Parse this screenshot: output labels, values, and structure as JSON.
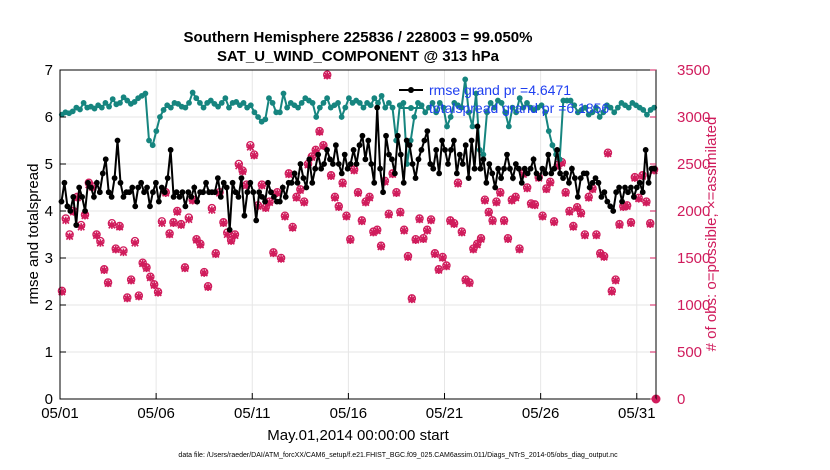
{
  "colors": {
    "rmse": "#000000",
    "spread": "#16857f",
    "obs": "#d01c5c",
    "legend_text": "#1f3ff0",
    "grid": "#e6e6e6"
  },
  "chart_data": {
    "type": "line",
    "title": [
      "Southern Hemisphere 225836 / 228003 = 99.050%",
      "SAT_U_WIND_COMPONENT @ 313 hPa"
    ],
    "xlabel": "May.01,2014 00:00:00 start",
    "ylabel": "rmse and totalspread",
    "ylabel_right": "# of obs: o=possible; ×=assimilated",
    "xlim": [
      1,
      32
    ],
    "ylim": [
      0,
      7
    ],
    "ylim_right": [
      0,
      3500
    ],
    "x_ticks": [
      1,
      6,
      11,
      16,
      21,
      26,
      31
    ],
    "x_tick_labels": [
      "05/01",
      "05/06",
      "05/11",
      "05/16",
      "05/21",
      "05/26",
      "05/31"
    ],
    "y_ticks": [
      0,
      1,
      2,
      3,
      4,
      5,
      6,
      7
    ],
    "y_ticks_right": [
      0,
      500,
      1000,
      1500,
      2000,
      2500,
      3000,
      3500
    ],
    "legend": [
      "rmse grand pr =4.6471",
      "totalspread grand pr =6.1856"
    ],
    "legend_position": "top-right",
    "series": [
      {
        "name": "rmse",
        "axis": "left",
        "marker": "dot",
        "values": [
          4.2,
          4.6,
          4.1,
          4.0,
          4.3,
          3.7,
          4.5,
          4.3,
          4.0,
          4.6,
          4.5,
          4.3,
          4.6,
          4.4,
          4.8,
          5.1,
          4.4,
          4.3,
          4.7,
          5.5,
          4.6,
          4.3,
          4.4,
          4.4,
          4.5,
          4.1,
          4.5,
          4.6,
          4.4,
          4.5,
          4.1,
          4.4,
          4.6,
          4.2,
          4.5,
          4.4,
          4.7,
          5.3,
          4.3,
          4.4,
          4.3,
          4.4,
          4.1,
          4.4,
          4.3,
          4.5,
          4.2,
          4.4,
          4.4,
          4.6,
          4.4,
          4.4,
          4.4,
          4.7,
          4.3,
          4.6,
          4.5,
          3.6,
          4.6,
          4.4,
          4.3,
          4.7,
          3.9,
          4.4,
          4.6,
          4.4,
          3.8,
          4.4,
          4.3,
          4.2,
          4.6,
          4.4,
          4.3,
          4.2,
          4.2,
          4.5,
          4.3,
          4.6,
          4.6,
          4.8,
          4.6,
          5.0,
          4.7,
          4.5,
          5.1,
          4.6,
          4.9,
          5.2,
          4.9,
          5.0,
          5.3,
          5.1,
          5.0,
          5.4,
          5.0,
          4.8,
          5.2,
          4.9,
          5.0,
          5.3,
          5.0,
          5.4,
          5.6,
          5.1,
          5.5,
          5.0,
          4.6,
          6.2,
          4.9,
          4.4,
          5.6,
          5.2,
          5.1,
          4.8,
          5.6,
          5.2,
          4.6,
          5.5,
          5.4,
          5.0,
          4.7,
          5.1,
          5.3,
          5.5,
          5.7,
          5.0,
          4.9,
          5.3,
          4.8,
          5.5,
          5.3,
          5.0,
          5.3,
          5.5,
          4.8,
          5.2,
          5.0,
          5.4,
          4.7,
          5.5,
          4.9,
          5.8,
          4.9,
          5.1,
          4.6,
          5.0,
          4.8,
          4.5,
          4.9,
          4.7,
          4.9,
          5.2,
          4.9,
          4.7,
          5.0,
          4.9,
          4.6,
          4.9,
          4.8,
          4.9,
          5.1,
          4.8,
          4.7,
          4.9,
          4.8,
          5.2,
          4.8,
          4.9,
          5.3,
          4.8,
          4.7,
          4.8,
          4.6,
          4.9,
          4.7,
          4.3,
          4.7,
          4.8,
          4.8,
          4.5,
          4.6,
          4.7,
          4.6,
          4.3,
          4.4,
          4.2,
          4.1,
          4.0,
          4.4,
          4.5,
          4.2,
          4.5,
          4.4,
          4.5,
          4.3,
          4.5,
          4.6,
          4.4,
          5.3,
          4.6,
          4.9,
          4.9
        ]
      },
      {
        "name": "totalspread",
        "axis": "left",
        "marker": "dot",
        "values": [
          6.05,
          6.1,
          6.08,
          6.12,
          6.2,
          6.16,
          6.3,
          6.2,
          6.22,
          6.18,
          6.25,
          6.2,
          6.3,
          6.22,
          6.38,
          6.27,
          6.3,
          6.42,
          6.35,
          6.28,
          6.32,
          6.4,
          6.45,
          6.5,
          5.5,
          5.4,
          5.7,
          6.0,
          6.15,
          6.25,
          6.2,
          6.3,
          6.28,
          6.22,
          6.2,
          6.3,
          6.52,
          6.4,
          6.3,
          6.2,
          6.3,
          6.35,
          6.28,
          6.22,
          6.3,
          6.4,
          6.2,
          6.3,
          6.32,
          6.25,
          6.3,
          6.2,
          6.25,
          6.1,
          6.0,
          5.9,
          5.95,
          6.4,
          6.3,
          6.1,
          6.1,
          6.5,
          6.2,
          6.3,
          6.25,
          6.2,
          6.3,
          6.4,
          6.35,
          6.3,
          6.0,
          6.2,
          6.3,
          6.4,
          6.2,
          6.25,
          6.3,
          6.0,
          6.2,
          6.4,
          6.3,
          6.35,
          6.3,
          6.2,
          6.3,
          6.25,
          6.4,
          6.3,
          6.45,
          6.2,
          6.3,
          6.2,
          5.5,
          6.25,
          6.3,
          5.0,
          5.5,
          6.0,
          6.3,
          6.25,
          6.1,
          6.2,
          6.3,
          6.1,
          6.3,
          6.2,
          5.8,
          6.0,
          6.3,
          6.25,
          6.2,
          6.8,
          6.1,
          5.8,
          6.5,
          5.3,
          5.2,
          6.1,
          6.3,
          6.2,
          6.35,
          6.3,
          6.1,
          5.8,
          6.2,
          6.1,
          6.4,
          6.2,
          6.3,
          6.2,
          6.15,
          6.2,
          6.25,
          6.1,
          5.7,
          5.4,
          5.2,
          5.1,
          6.35,
          6.35,
          6.35,
          6.25,
          6.1,
          6.15,
          6.2,
          6.05,
          6.1,
          6.2,
          6.0,
          6.1,
          6.25,
          6.2,
          6.1,
          6.2,
          6.3,
          6.25,
          6.2,
          6.3,
          6.25,
          6.2,
          6.15,
          6.05,
          6.15,
          6.2
        ]
      },
      {
        "name": "obs possible",
        "axis": "right",
        "marker": "circle",
        "values": [
          1150,
          1920,
          1750,
          2000,
          2150,
          1850,
          1960,
          2300,
          2260,
          1750,
          1680,
          1380,
          1240,
          1870,
          1600,
          1840,
          1580,
          1080,
          1270,
          1680,
          1100,
          1450,
          1400,
          1300,
          1220,
          1140,
          1890,
          2200,
          1760,
          1880,
          2000,
          1860,
          1400,
          1930,
          2120,
          1700,
          1650,
          1350,
          1200,
          2030,
          1550,
          2200,
          1880,
          1770,
          1690,
          1750,
          2500,
          2430,
          2280,
          2700,
          2600,
          2060,
          2280,
          2040,
          2100,
          1560,
          2200,
          1500,
          1950,
          2400,
          1830,
          2150,
          2230,
          2100,
          2500,
          2580,
          2650,
          2850,
          2700,
          3450,
          2380,
          2150,
          2050,
          2300,
          1950,
          1700,
          2440,
          2200,
          1900,
          2100,
          2150,
          1780,
          1800,
          1630,
          2320,
          1970,
          2400,
          2200,
          1990,
          1800,
          1520,
          1070,
          1700,
          1920,
          1710,
          1800,
          1910,
          1550,
          1380,
          1510,
          1420,
          1900,
          1870,
          2300,
          1780,
          1270,
          1240,
          1600,
          1650,
          1710,
          2120,
          1990,
          1900,
          2100,
          2200,
          1900,
          1710,
          2120,
          2150,
          1600,
          2400,
          2250,
          2080,
          2070,
          2360,
          1950,
          2240,
          2310,
          1890,
          2490,
          2520,
          2200,
          2000,
          1840,
          2040,
          1980,
          1750,
          2150,
          2240,
          1750,
          1550,
          1520,
          2620,
          1150,
          1270,
          1860,
          2050,
          2060,
          1880,
          2360,
          2140,
          2380,
          2100,
          1870,
          2440
        ]
      },
      {
        "name": "obs assimilated",
        "axis": "right",
        "marker": "x",
        "values": [
          1140,
          1900,
          1730,
          1990,
          2140,
          1830,
          1950,
          2280,
          2250,
          1740,
          1660,
          1370,
          1230,
          1850,
          1590,
          1830,
          1560,
          1070,
          1260,
          1660,
          1090,
          1440,
          1390,
          1290,
          1210,
          1130,
          1870,
          2190,
          1750,
          1870,
          1990,
          1850,
          1390,
          1910,
          2110,
          1690,
          1640,
          1340,
          1190,
          2010,
          1540,
          2190,
          1870,
          1750,
          1680,
          1740,
          2480,
          2420,
          2270,
          2680,
          2590,
          2050,
          2270,
          2030,
          2090,
          1550,
          2190,
          1490,
          1940,
          2390,
          1820,
          2140,
          2220,
          2090,
          2490,
          2570,
          2640,
          2840,
          2690,
          3440,
          2370,
          2140,
          2040,
          2290,
          1940,
          1690,
          2430,
          2190,
          1890,
          2090,
          2140,
          1770,
          1790,
          1620,
          2310,
          1960,
          2390,
          2190,
          1980,
          1790,
          1510,
          1060,
          1690,
          1910,
          1700,
          1790,
          1900,
          1540,
          1370,
          1500,
          1410,
          1890,
          1860,
          2290,
          1770,
          1260,
          1230,
          1590,
          1640,
          1700,
          2110,
          1980,
          1890,
          2090,
          2190,
          1890,
          1700,
          2110,
          2140,
          1590,
          2390,
          2240,
          2070,
          2060,
          2350,
          1940,
          2230,
          2300,
          1880,
          2480,
          2510,
          2190,
          1990,
          1830,
          2030,
          1970,
          1740,
          2140,
          2230,
          1740,
          1540,
          1510,
          2610,
          1140,
          1260,
          1850,
          2040,
          2050,
          1870,
          2350,
          2130,
          2370,
          2090,
          1860,
          2430
        ]
      }
    ],
    "end_point": {
      "x": 32,
      "value_right": 0
    }
  },
  "footnote": "data file: /Users/raeder/DAI/ATM_forcXX/CAM6_setup/f.e21.FHIST_BGC.f09_025.CAM6assim.011/Diags_NTrS_2014-05/obs_diag_output.nc"
}
